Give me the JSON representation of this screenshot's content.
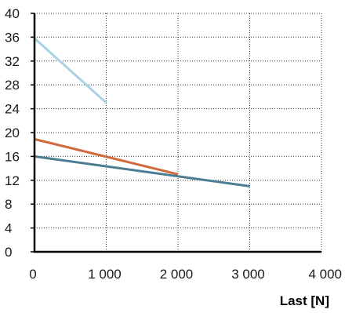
{
  "chart_data": {
    "type": "line",
    "title": "",
    "xlabel": "Last [N]",
    "ylabel": "",
    "xlim": [
      0,
      4000
    ],
    "ylim": [
      0,
      40
    ],
    "x_ticks": [
      0,
      1000,
      2000,
      3000,
      4000
    ],
    "x_tick_labels": [
      "0",
      "1 000",
      "2 000",
      "3 000",
      "4 000"
    ],
    "y_ticks": [
      0,
      4,
      8,
      12,
      16,
      20,
      24,
      28,
      32,
      36,
      40
    ],
    "y_tick_labels": [
      "0",
      "4",
      "8",
      "12",
      "16",
      "20",
      "24",
      "28",
      "32",
      "36",
      "40"
    ],
    "grid": true,
    "grid_style": "dotted",
    "series": [
      {
        "color": "#a7d3e3",
        "x": [
          0,
          1000
        ],
        "y": [
          35.8,
          25
        ]
      },
      {
        "color": "#d0693f",
        "x": [
          0,
          2000
        ],
        "y": [
          18.9,
          13
        ]
      },
      {
        "color": "#4b7d91",
        "x": [
          0,
          3000
        ],
        "y": [
          16,
          11
        ]
      }
    ]
  }
}
